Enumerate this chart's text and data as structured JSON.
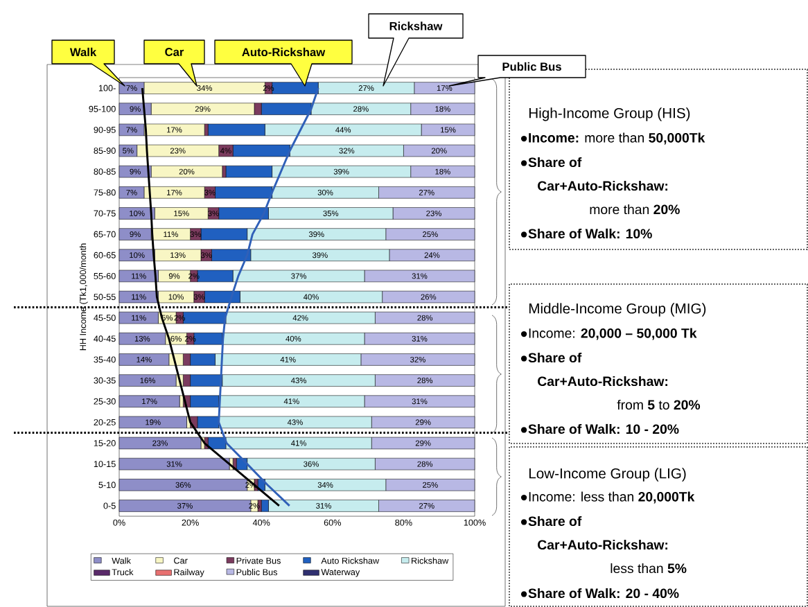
{
  "chart_data": {
    "type": "bar",
    "orientation": "horizontal",
    "stacked": true,
    "ylabel": "HH Income (Tk1,000/month",
    "categories": [
      "100-",
      "95-100",
      "90-95",
      "85-90",
      "80-85",
      "75-80",
      "70-75",
      "65-70",
      "60-65",
      "55-60",
      "50-55",
      "45-50",
      "40-45",
      "35-40",
      "30-35",
      "25-30",
      "20-25",
      "15-20",
      "10-15",
      "5-10",
      "0-5"
    ],
    "xlim": [
      0,
      100
    ],
    "xticks": [
      {
        "value": 0,
        "label": "0%"
      },
      {
        "value": 20,
        "label": "20%"
      },
      {
        "value": 40,
        "label": "40%"
      },
      {
        "value": 60,
        "label": "60%"
      },
      {
        "value": 80,
        "label": "80%"
      },
      {
        "value": 100,
        "label": "100%"
      }
    ],
    "legend": "bottom",
    "series": [
      {
        "name": "Walk",
        "color": "#8e8ec8",
        "values": [
          7,
          9,
          7,
          5,
          9,
          7,
          10,
          9,
          10,
          11,
          11,
          11,
          13,
          14,
          16,
          17,
          19,
          23,
          31,
          36,
          37
        ],
        "value_labels": [
          "7%",
          "9%",
          "7%",
          "5%",
          "9%",
          "7%",
          "10%",
          "9%",
          "10%",
          "11%",
          "11%",
          "11%",
          "13%",
          "14%",
          "16%",
          "17%",
          "19%",
          "23%",
          "31%",
          "36%",
          "37%"
        ]
      },
      {
        "name": "Car",
        "color": "#f8f6c4",
        "values": [
          34,
          29,
          17,
          23,
          20,
          17,
          15,
          11,
          13,
          9,
          10,
          5,
          6,
          4,
          2,
          1,
          1,
          1,
          1,
          2,
          2
        ],
        "value_labels": [
          "34%",
          "29%",
          "17%",
          "23%",
          "20%",
          "17%",
          "15%",
          "11%",
          "13%",
          "9%",
          "10%",
          "5%",
          "6%",
          null,
          null,
          null,
          null,
          null,
          null,
          "2%",
          "2%"
        ]
      },
      {
        "name": "Private Bus",
        "color": "#7b3b5e",
        "values": [
          2,
          2,
          1,
          4,
          1,
          3,
          3,
          3,
          3,
          2,
          3,
          2,
          2,
          2,
          2,
          2,
          2,
          1,
          1,
          1,
          1
        ],
        "value_labels": [
          "2%",
          null,
          null,
          "4%",
          null,
          "3%",
          "3%",
          "3%",
          "3%",
          "2%",
          "3%",
          "2%",
          "2%",
          null,
          null,
          null,
          null,
          null,
          null,
          null,
          null
        ]
      },
      {
        "name": "Auto Rickshaw",
        "color": "#2060c0",
        "values": [
          13,
          14,
          16,
          16,
          13,
          16,
          14,
          13,
          11,
          10,
          10,
          12,
          8,
          7,
          9,
          8,
          6,
          5,
          3,
          2,
          2
        ]
      },
      {
        "name": "Rickshaw",
        "color": "#c6ecee",
        "values": [
          27,
          28,
          44,
          32,
          39,
          30,
          35,
          39,
          39,
          37,
          40,
          42,
          40,
          41,
          43,
          41,
          43,
          41,
          36,
          34,
          31
        ],
        "value_labels": [
          "27%",
          "28%",
          "44%",
          "32%",
          "39%",
          "30%",
          "35%",
          "39%",
          "39%",
          "37%",
          "40%",
          "42%",
          "40%",
          "41%",
          "43%",
          "41%",
          "43%",
          "41%",
          "36%",
          "34%",
          "31%"
        ]
      },
      {
        "name": "Truck",
        "color": "#5a2a6a",
        "values": [
          null,
          null,
          null,
          null,
          null,
          null,
          null,
          null,
          null,
          null,
          null,
          null,
          null,
          null,
          null,
          null,
          null,
          null,
          null,
          null,
          null
        ]
      },
      {
        "name": "Railway",
        "color": "#e87070",
        "values": [
          null,
          null,
          null,
          null,
          null,
          null,
          null,
          null,
          null,
          null,
          null,
          null,
          null,
          null,
          null,
          null,
          null,
          null,
          null,
          null,
          null
        ]
      },
      {
        "name": "Public Bus",
        "color": "#b8b8e4",
        "values": [
          17,
          18,
          15,
          20,
          18,
          27,
          23,
          25,
          24,
          31,
          26,
          28,
          31,
          32,
          28,
          31,
          29,
          29,
          28,
          25,
          27
        ],
        "value_labels": [
          "17%",
          "18%",
          "15%",
          "20%",
          "18%",
          "27%",
          "23%",
          "25%",
          "24%",
          "31%",
          "26%",
          "28%",
          "31%",
          "32%",
          "28%",
          "31%",
          "29%",
          "29%",
          "28%",
          "25%",
          "27%"
        ]
      },
      {
        "name": "Waterway",
        "color": "#303070",
        "values": [
          null,
          null,
          null,
          null,
          null,
          null,
          null,
          null,
          null,
          null,
          null,
          null,
          null,
          null,
          null,
          null,
          null,
          null,
          null,
          null,
          null
        ]
      },
      {
        "type": "line",
        "color": "#000000",
        "values": [
          6.5,
          7,
          7.5,
          7.8,
          8.2,
          8.6,
          9,
          9.3,
          9.7,
          10.2,
          10.6,
          12,
          14,
          15.5,
          17,
          18.5,
          20,
          24,
          31,
          38,
          45
        ]
      },
      {
        "type": "line",
        "color": "#3060b8",
        "values": [
          56,
          54,
          51,
          48,
          45.5,
          43,
          40.7,
          37.5,
          36,
          33.5,
          31.6,
          29.8,
          29.2,
          28.9,
          28.6,
          28.3,
          28,
          30.2,
          36,
          41.7,
          47.9
        ]
      }
    ],
    "annotations": [
      "Walk",
      "Car",
      "Auto-Rickshaw",
      "Rickshaw",
      "Public Bus",
      "High-Income Group (HIS)",
      "●**Income:** more than **50,000Tk**",
      "●**Share of**",
      "**Car+Auto-Rickshaw:**",
      "more than **20%**",
      "●**Share of Walk: 10%**",
      "Middle-Income Group (MIG)",
      "●Income: **20,000 – 50,000 Tk**",
      "●**Share of**",
      "**Car+Auto-Rickshaw:**",
      "from **5** to **20%**",
      "●**Share of Walk: 10 - 20%**",
      "Low-Income Group (LIG)",
      "●Income: less than **20,000Tk**",
      "●**Share of**",
      "**Car+Auto-Rickshaw:**",
      "less than **5%**",
      "●**Share of Walk: 20 - 40%**"
    ]
  }
}
